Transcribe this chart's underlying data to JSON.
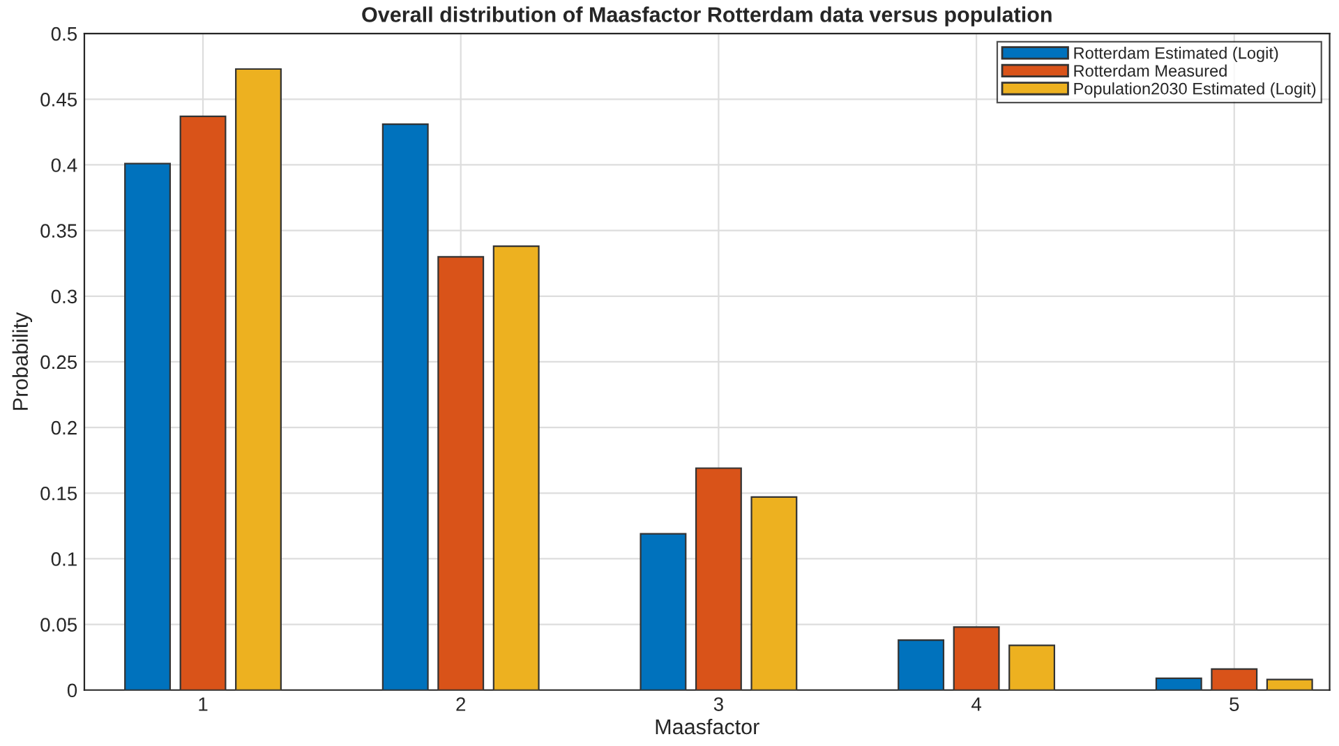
{
  "chart_data": {
    "type": "bar",
    "title": "Overall distribution of Maasfactor Rotterdam data versus population",
    "xlabel": "Maasfactor",
    "ylabel": "Probability",
    "categories": [
      "1",
      "2",
      "3",
      "4",
      "5"
    ],
    "series": [
      {
        "name": "Rotterdam Estimated (Logit)",
        "color": "#0072bd",
        "values": [
          0.401,
          0.431,
          0.119,
          0.038,
          0.009
        ]
      },
      {
        "name": "Rotterdam Measured",
        "color": "#d95319",
        "values": [
          0.437,
          0.33,
          0.169,
          0.048,
          0.016
        ]
      },
      {
        "name": "Population2030 Estimated (Logit)",
        "color": "#edb120",
        "values": [
          0.473,
          0.338,
          0.147,
          0.034,
          0.008
        ]
      }
    ],
    "ylim": [
      0,
      0.5
    ],
    "yticks": [
      0,
      0.05,
      0.1,
      0.15,
      0.2,
      0.25,
      0.3,
      0.35,
      0.4,
      0.45,
      0.5
    ],
    "grid": true,
    "legend": "top right"
  }
}
